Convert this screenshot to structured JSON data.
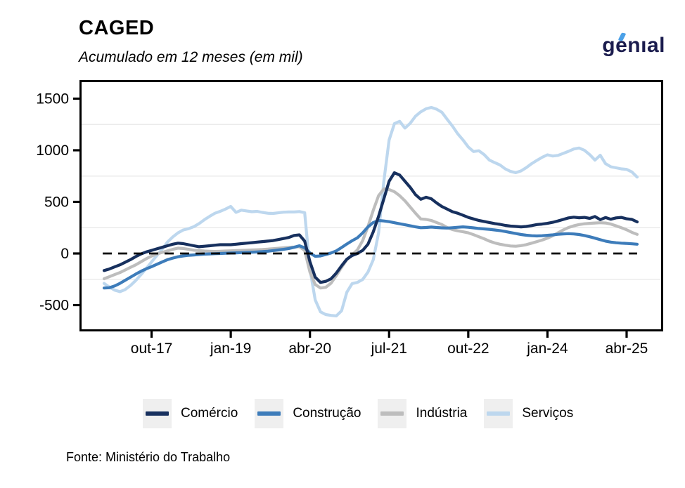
{
  "header": {
    "title": "CAGED",
    "subtitle": "Acumulado em 12 meses (em mil)"
  },
  "logo": {
    "text": "genıal",
    "text_color": "#1b1c4e",
    "accent_color": "#4ba1e8"
  },
  "footer": {
    "source": "Fonte: Ministério do Trabalho"
  },
  "chart_data": {
    "type": "line",
    "title": "CAGED",
    "subtitle": "Acumulado em 12 meses (em mil)",
    "unit": "mil (thousands), 12-month accumulated job creation",
    "grid": "minor-horizontal-only",
    "legend_position": "bottom",
    "zero_line_dashed": true,
    "ylim": [
      -760,
      1680
    ],
    "y_ticks": [
      1500,
      1000,
      500,
      0,
      -500
    ],
    "y_minor_gridlines": [
      1250,
      750,
      250,
      -250
    ],
    "x_tick_labels": [
      "out-17",
      "jan-19",
      "abr-20",
      "jul-21",
      "out-22",
      "jan-24",
      "abr-25"
    ],
    "x_tick_month_indices": [
      9,
      24,
      39,
      54,
      69,
      84,
      99
    ],
    "x": [
      "jan-17",
      "fev-17",
      "mar-17",
      "abr-17",
      "mai-17",
      "jun-17",
      "jul-17",
      "ago-17",
      "set-17",
      "out-17",
      "nov-17",
      "dez-17",
      "jan-18",
      "fev-18",
      "mar-18",
      "abr-18",
      "mai-18",
      "jun-18",
      "jul-18",
      "ago-18",
      "set-18",
      "out-18",
      "nov-18",
      "dez-18",
      "jan-19",
      "fev-19",
      "mar-19",
      "abr-19",
      "mai-19",
      "jun-19",
      "jul-19",
      "ago-19",
      "set-19",
      "out-19",
      "nov-19",
      "dez-19",
      "jan-20",
      "fev-20",
      "mar-20",
      "abr-20",
      "mai-20",
      "jun-20",
      "jul-20",
      "ago-20",
      "set-20",
      "out-20",
      "nov-20",
      "dez-20",
      "jan-21",
      "fev-21",
      "mar-21",
      "abr-21",
      "mai-21",
      "jun-21",
      "jul-21",
      "ago-21",
      "set-21",
      "out-21",
      "nov-21",
      "dez-21",
      "jan-22",
      "fev-22",
      "mar-22",
      "abr-22",
      "mai-22",
      "jun-22",
      "jul-22",
      "ago-22",
      "set-22",
      "out-22",
      "nov-22",
      "dez-22",
      "jan-23",
      "fev-23",
      "mar-23",
      "abr-23",
      "mai-23",
      "jun-23",
      "jul-23",
      "ago-23",
      "set-23",
      "out-23",
      "nov-23",
      "dez-23",
      "jan-24",
      "fev-24",
      "mar-24",
      "abr-24",
      "mai-24",
      "jun-24",
      "jul-24",
      "ago-24",
      "set-24",
      "out-24",
      "nov-24",
      "dez-24",
      "jan-25",
      "fev-25",
      "mar-25",
      "abr-25",
      "mai-25",
      "jun-25"
    ],
    "series": [
      {
        "name": "Comércio",
        "color": "#17305E",
        "values": [
          -165,
          -150,
          -130,
          -110,
          -85,
          -60,
          -30,
          -5,
          15,
          30,
          45,
          60,
          75,
          90,
          100,
          95,
          85,
          75,
          65,
          70,
          75,
          80,
          85,
          85,
          85,
          90,
          95,
          100,
          105,
          110,
          115,
          120,
          125,
          135,
          145,
          155,
          175,
          180,
          120,
          -80,
          -230,
          -280,
          -270,
          -245,
          -190,
          -120,
          -55,
          -20,
          0,
          30,
          90,
          210,
          360,
          530,
          700,
          782,
          760,
          700,
          640,
          570,
          525,
          545,
          530,
          490,
          455,
          430,
          405,
          390,
          370,
          350,
          335,
          320,
          310,
          300,
          290,
          282,
          272,
          265,
          262,
          258,
          262,
          270,
          280,
          285,
          292,
          302,
          315,
          330,
          345,
          352,
          346,
          350,
          340,
          358,
          328,
          348,
          332,
          345,
          350,
          336,
          330,
          306
        ]
      },
      {
        "name": "Construção",
        "color": "#3D7CBA",
        "values": [
          -335,
          -332,
          -315,
          -290,
          -260,
          -230,
          -200,
          -172,
          -148,
          -128,
          -105,
          -82,
          -60,
          -45,
          -32,
          -24,
          -18,
          -14,
          -10,
          -6,
          -4,
          -2,
          0,
          2,
          4,
          6,
          8,
          10,
          12,
          15,
          18,
          22,
          28,
          34,
          40,
          48,
          60,
          75,
          55,
          5,
          -27,
          -24,
          -10,
          5,
          25,
          58,
          92,
          124,
          152,
          200,
          258,
          300,
          320,
          315,
          308,
          298,
          288,
          278,
          268,
          258,
          250,
          252,
          256,
          252,
          248,
          246,
          250,
          254,
          258,
          254,
          248,
          242,
          238,
          233,
          228,
          222,
          213,
          203,
          193,
          184,
          177,
          172,
          170,
          172,
          176,
          180,
          186,
          190,
          192,
          189,
          184,
          174,
          162,
          148,
          133,
          120,
          110,
          104,
          100,
          97,
          94,
          90
        ]
      },
      {
        "name": "Indústria",
        "color": "#BDBDBD",
        "values": [
          -245,
          -225,
          -205,
          -185,
          -160,
          -135,
          -110,
          -80,
          -50,
          -25,
          -5,
          10,
          25,
          40,
          52,
          48,
          40,
          32,
          28,
          24,
          22,
          20,
          22,
          24,
          26,
          28,
          30,
          32,
          34,
          36,
          38,
          42,
          46,
          50,
          55,
          60,
          62,
          66,
          30,
          -180,
          -300,
          -335,
          -328,
          -288,
          -215,
          -135,
          -60,
          -12,
          35,
          125,
          260,
          420,
          560,
          626,
          620,
          598,
          560,
          510,
          450,
          390,
          335,
          330,
          320,
          300,
          280,
          252,
          232,
          220,
          210,
          200,
          182,
          162,
          142,
          120,
          102,
          90,
          80,
          73,
          70,
          76,
          86,
          100,
          115,
          130,
          148,
          172,
          200,
          228,
          252,
          268,
          280,
          288,
          292,
          295,
          298,
          295,
          285,
          268,
          250,
          230,
          205,
          185
        ]
      },
      {
        "name": "Serviços",
        "color": "#BDD7EE",
        "values": [
          -290,
          -325,
          -355,
          -370,
          -350,
          -310,
          -262,
          -205,
          -145,
          -82,
          -20,
          42,
          110,
          160,
          200,
          228,
          240,
          260,
          290,
          327,
          360,
          390,
          408,
          430,
          456,
          398,
          420,
          412,
          405,
          408,
          398,
          390,
          388,
          394,
          400,
          402,
          402,
          406,
          395,
          -150,
          -450,
          -565,
          -592,
          -600,
          -605,
          -555,
          -375,
          -292,
          -280,
          -252,
          -180,
          -60,
          200,
          700,
          1100,
          1258,
          1280,
          1215,
          1262,
          1330,
          1372,
          1402,
          1415,
          1398,
          1368,
          1300,
          1235,
          1160,
          1100,
          1032,
          988,
          995,
          958,
          905,
          880,
          858,
          820,
          795,
          783,
          800,
          832,
          870,
          902,
          932,
          956,
          944,
          950,
          970,
          990,
          1012,
          1022,
          1000,
          958,
          905,
          952,
          870,
          840,
          830,
          820,
          815,
          790,
          740
        ]
      }
    ]
  }
}
